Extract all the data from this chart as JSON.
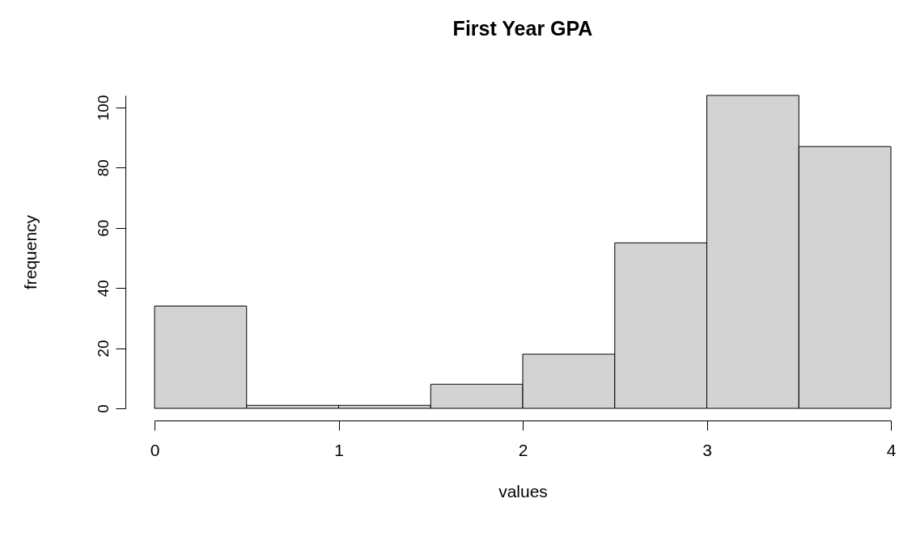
{
  "chart_data": {
    "type": "histogram",
    "title": "First Year GPA",
    "xlabel": "values",
    "ylabel": "frequency",
    "bins": [
      0,
      0.5,
      1,
      1.5,
      2,
      2.5,
      3,
      3.5,
      4
    ],
    "values": [
      34,
      1,
      1,
      8,
      18,
      55,
      104,
      87
    ],
    "color": "#d3d3d3",
    "xlim": [
      0,
      4
    ],
    "xticks": [
      0,
      1,
      2,
      3,
      4
    ],
    "ylim": [
      0,
      104
    ],
    "yticks": [
      0,
      20,
      40,
      60,
      80,
      100
    ],
    "grid": false
  }
}
